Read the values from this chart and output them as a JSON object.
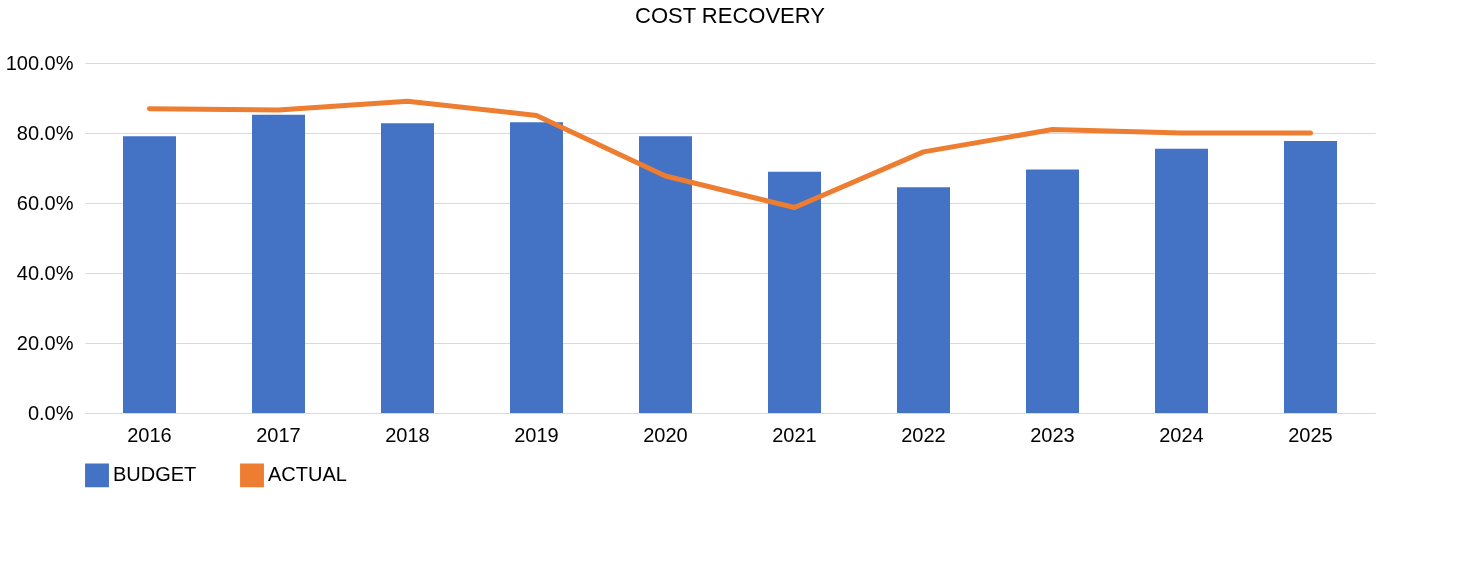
{
  "chart_data": {
    "type": "bar",
    "title": "COST RECOVERY",
    "categories": [
      "2016",
      "2017",
      "2018",
      "2019",
      "2020",
      "2021",
      "2022",
      "2023",
      "2024",
      "2025"
    ],
    "series": [
      {
        "name": "BUDGET",
        "type": "bar",
        "color": "#4472c4",
        "values": [
          79.1,
          85.2,
          82.8,
          83.1,
          79.1,
          68.9,
          64.5,
          69.6,
          75.5,
          77.7
        ]
      },
      {
        "name": "ACTUAL",
        "type": "line",
        "color": "#ed7d31",
        "values": [
          86.9,
          86.6,
          89.1,
          85.0,
          67.7,
          58.7,
          74.6,
          81.0,
          80.0,
          80.0
        ]
      }
    ],
    "ylim": [
      0,
      100
    ],
    "yticks": [
      {
        "value": 0,
        "label": "0.0%"
      },
      {
        "value": 20,
        "label": "20.0%"
      },
      {
        "value": 40,
        "label": "40.0%"
      },
      {
        "value": 60,
        "label": "60.0%"
      },
      {
        "value": 80,
        "label": "80.0%"
      },
      {
        "value": 100,
        "label": "100.0%"
      }
    ],
    "grid": "y",
    "legend": "bottom",
    "line_style": "solid",
    "marker": "none"
  }
}
